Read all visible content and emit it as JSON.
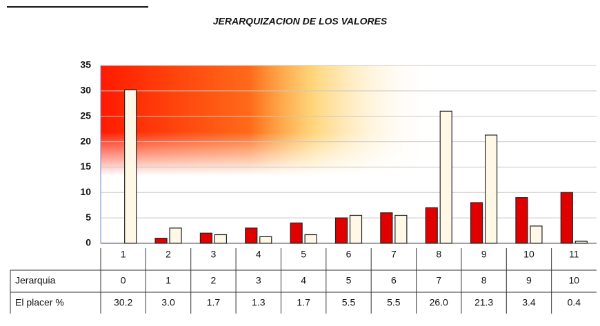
{
  "chart_data": {
    "type": "bar",
    "title": "JERARQUIZACION DE LOS VALORES",
    "categories": [
      "1",
      "2",
      "3",
      "4",
      "5",
      "6",
      "7",
      "8",
      "9",
      "10",
      "11"
    ],
    "series": [
      {
        "name": "Jerarquia",
        "color": "#e00000",
        "values": [
          0,
          1,
          2,
          3,
          4,
          5,
          6,
          7,
          8,
          9,
          10
        ]
      },
      {
        "name": "El placer %",
        "color": "#fff8e6",
        "values": [
          30.2,
          3.0,
          1.7,
          1.3,
          1.7,
          5.5,
          5.5,
          26.0,
          21.3,
          3.4,
          0.4
        ],
        "value_labels": [
          "30.2",
          "3.0",
          "1.7",
          "1.3",
          "1.7",
          "5.5",
          "5.5",
          "26.0",
          "21.3",
          "3.4",
          "0.4"
        ]
      }
    ],
    "ylim": [
      0,
      35
    ],
    "yticks": [
      0,
      5,
      10,
      15,
      20,
      25,
      30,
      35
    ],
    "grid": true
  }
}
